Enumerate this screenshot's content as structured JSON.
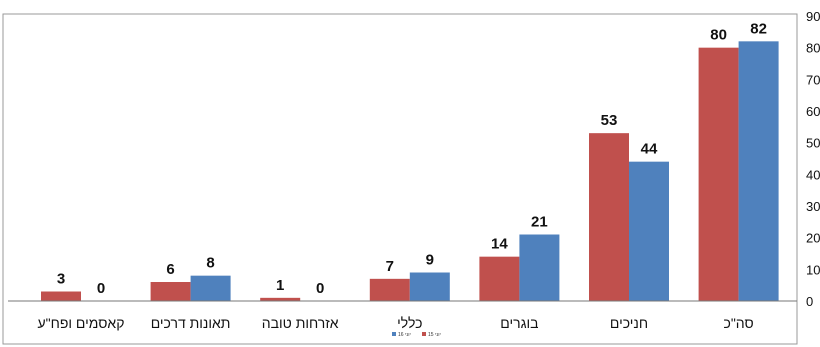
{
  "chart_data": {
    "type": "bar",
    "categories": [
      "קאסמים ופח\"ע",
      "תאונות דרכים",
      "אזרחות טובה",
      "כללי",
      "בוגרים",
      "חניכים",
      "סה\"כ"
    ],
    "series": [
      {
        "name": "יוני 15",
        "color": "#c0504d",
        "values": [
          3,
          6,
          1,
          7,
          14,
          53,
          80
        ]
      },
      {
        "name": "יוני 16",
        "color": "#4f81bd",
        "values": [
          0,
          8,
          0,
          9,
          21,
          44,
          82
        ]
      }
    ],
    "yticks": [
      0,
      10,
      20,
      30,
      40,
      50,
      60,
      70,
      80,
      90
    ],
    "ylim": [
      0,
      90
    ],
    "legend_position": "bottom-center-small",
    "title": "",
    "xlabel": "",
    "ylabel": ""
  }
}
